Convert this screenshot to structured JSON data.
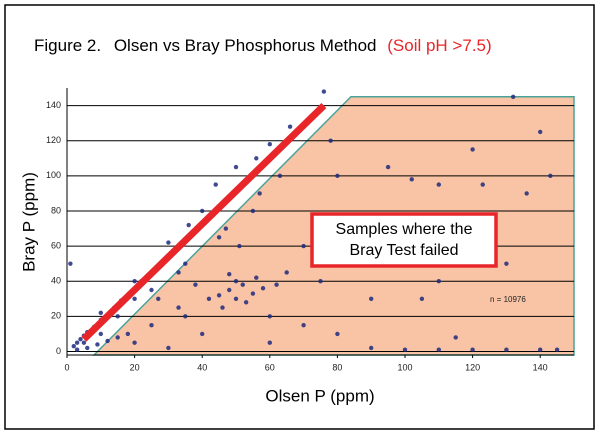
{
  "chart_data": {
    "type": "scatter",
    "figure_label": "Figure 2.",
    "title": "Olsen vs Bray Phosphorus Method",
    "subtitle": "(Soil pH >7.5)",
    "x_label": "Olsen P (ppm)",
    "y_label": "Bray P (ppm)",
    "annotation": [
      "Samples where the",
      "Bray Test failed"
    ],
    "note": "n = 10976",
    "xlim": [
      0,
      150
    ],
    "ylim": [
      -2,
      150
    ],
    "xticks": [
      0,
      20,
      40,
      60,
      80,
      100,
      120,
      140
    ],
    "yticks": [
      0,
      20,
      40,
      60,
      80,
      100,
      120,
      140
    ],
    "grid": true,
    "color": "#1f2a7c",
    "shaded_region": {
      "x": [
        8,
        84,
        150,
        150
      ],
      "y": [
        -2,
        145,
        145,
        -2
      ],
      "color": "#f9c4a6",
      "edge_color": "#4aa39a"
    },
    "trend_line": {
      "x": [
        5,
        76
      ],
      "y": [
        7,
        140
      ],
      "color": "#e8262a"
    },
    "x": [
      2,
      3,
      4,
      5,
      6,
      8,
      10,
      12,
      14,
      16,
      18,
      20,
      22,
      24,
      26,
      28,
      30,
      32,
      34,
      36,
      38,
      40,
      42,
      44,
      46,
      48,
      50,
      52,
      54,
      56,
      58,
      60,
      62,
      64,
      66,
      68,
      70,
      72,
      74,
      76,
      44,
      50,
      40,
      30,
      36,
      56,
      66,
      60,
      20,
      10,
      5,
      10,
      15,
      20,
      25,
      35,
      45,
      55,
      1,
      20,
      30,
      40,
      50,
      48,
      52,
      55,
      45,
      50,
      58,
      42,
      53,
      60,
      70,
      80,
      90,
      100,
      110,
      120,
      130,
      140,
      145,
      75,
      85,
      95,
      100,
      110,
      120,
      123,
      132,
      140,
      143,
      136,
      95,
      80,
      78,
      102,
      110,
      105,
      115,
      130,
      25,
      35,
      15,
      65,
      70,
      90,
      60,
      46,
      56,
      48,
      62,
      38,
      33,
      3,
      6,
      9,
      12,
      18,
      27,
      33,
      47,
      51,
      57,
      63
    ],
    "values": [
      3,
      5,
      7,
      9,
      11,
      14,
      18,
      21,
      25,
      29,
      32,
      36,
      40,
      43,
      47,
      50,
      54,
      58,
      61,
      65,
      69,
      72,
      76,
      80,
      84,
      87,
      91,
      95,
      98,
      102,
      106,
      110,
      113,
      117,
      121,
      125,
      128,
      132,
      137,
      148,
      95,
      105,
      80,
      62,
      72,
      110,
      128,
      118,
      40,
      22,
      5,
      10,
      20,
      30,
      35,
      50,
      65,
      80,
      50,
      5,
      2,
      10,
      30,
      35,
      38,
      33,
      32,
      40,
      36,
      30,
      28,
      20,
      15,
      10,
      2,
      1,
      1,
      1,
      1,
      1,
      1,
      40,
      65,
      60,
      58,
      95,
      115,
      95,
      145,
      125,
      100,
      90,
      105,
      100,
      120,
      98,
      40,
      30,
      8,
      50,
      15,
      20,
      8,
      45,
      60,
      30,
      5,
      25,
      42,
      44,
      38,
      38,
      25,
      1,
      2,
      4,
      6,
      10,
      30,
      45,
      70,
      60,
      90,
      100
    ]
  }
}
